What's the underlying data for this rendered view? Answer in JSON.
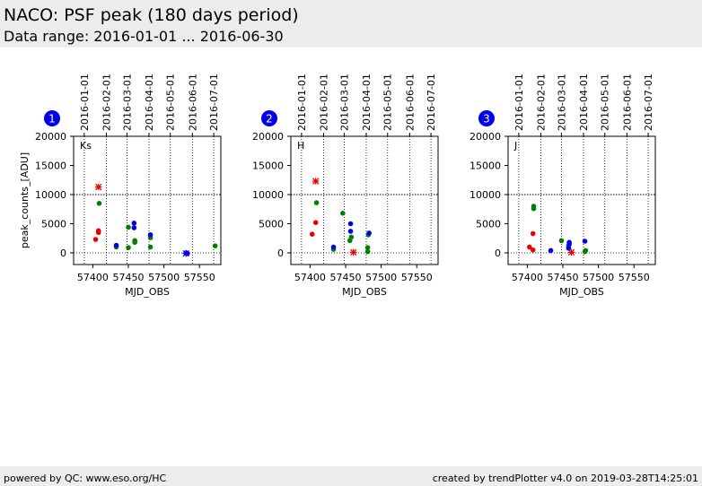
{
  "header": {
    "title": "NACO: PSF peak (180 days period)",
    "subtitle": "Data range: 2016-01-01 ... 2016-06-30"
  },
  "footer": {
    "left": "powered by QC: www.eso.org/HC",
    "right": "created by trendPlotter v4.0 on 2019-03-28T14:25:01"
  },
  "colors": {
    "red": "#ee0000",
    "green": "#008000",
    "blue": "#0000ee",
    "badge": "#0000ee",
    "header_bg": "#ececec"
  },
  "chart_data": [
    {
      "type": "scatter",
      "panel_number": "1",
      "band_label": "Ks",
      "ylabel": "peak_counts_[ADU]",
      "xlabel": "MJD_OBS",
      "xlim": [
        57373,
        57580
      ],
      "ylim": [
        -2000,
        20000
      ],
      "x_ticks": [
        57400,
        57450,
        57500,
        57550
      ],
      "y_ticks": [
        0,
        5000,
        10000,
        15000,
        20000
      ],
      "top_date_ticks": [
        {
          "mjd": 57388,
          "label": "2016-01-01"
        },
        {
          "mjd": 57419,
          "label": "2016-02-01"
        },
        {
          "mjd": 57448,
          "label": "2016-03-01"
        },
        {
          "mjd": 57479,
          "label": "2016-04-01"
        },
        {
          "mjd": 57509,
          "label": "2016-05-01"
        },
        {
          "mjd": 57540,
          "label": "2016-06-01"
        },
        {
          "mjd": 57570,
          "label": "2016-07-01"
        }
      ],
      "threshold_line": 10000,
      "grid": "dotted vertical at month boundaries",
      "series": [
        {
          "color": "red",
          "marker": "dot",
          "points": [
            [
              57404,
              2300
            ],
            [
              57408,
              3500
            ],
            [
              57408,
              3800
            ]
          ]
        },
        {
          "color": "red",
          "marker": "star",
          "points": [
            [
              57408,
              11300
            ]
          ]
        },
        {
          "color": "green",
          "marker": "dot",
          "points": [
            [
              57409,
              8500
            ],
            [
              57433,
              1000
            ],
            [
              57450,
              4400
            ],
            [
              57450,
              900
            ],
            [
              57459,
              1800
            ],
            [
              57459,
              2100
            ],
            [
              57481,
              2600
            ],
            [
              57481,
              1000
            ],
            [
              57572,
              1200
            ]
          ]
        },
        {
          "color": "blue",
          "marker": "dot",
          "points": [
            [
              57433,
              1300
            ],
            [
              57458,
              5100
            ],
            [
              57458,
              4300
            ],
            [
              57481,
              3100
            ],
            [
              57531,
              0
            ],
            [
              57533,
              -100
            ]
          ]
        },
        {
          "color": "blue",
          "marker": "star",
          "points": [
            [
              57531,
              -100
            ]
          ]
        }
      ]
    },
    {
      "type": "scatter",
      "panel_number": "2",
      "band_label": "H",
      "ylabel": "",
      "xlabel": "MJD_OBS",
      "xlim": [
        57373,
        57580
      ],
      "ylim": [
        -2000,
        20000
      ],
      "x_ticks": [
        57400,
        57450,
        57500,
        57550
      ],
      "y_ticks": [
        0,
        5000,
        10000,
        15000,
        20000
      ],
      "top_date_ticks": [
        {
          "mjd": 57388,
          "label": "2016-01-01"
        },
        {
          "mjd": 57419,
          "label": "2016-02-01"
        },
        {
          "mjd": 57448,
          "label": "2016-03-01"
        },
        {
          "mjd": 57479,
          "label": "2016-04-01"
        },
        {
          "mjd": 57509,
          "label": "2016-05-01"
        },
        {
          "mjd": 57540,
          "label": "2016-06-01"
        },
        {
          "mjd": 57570,
          "label": "2016-07-01"
        }
      ],
      "threshold_line": 10000,
      "grid": "dotted vertical at month boundaries",
      "series": [
        {
          "color": "red",
          "marker": "dot",
          "points": [
            [
              57403,
              3200
            ],
            [
              57408,
              5200
            ]
          ]
        },
        {
          "color": "red",
          "marker": "star",
          "points": [
            [
              57408,
              12300
            ],
            [
              57461,
              100
            ]
          ]
        },
        {
          "color": "green",
          "marker": "dot",
          "points": [
            [
              57409,
              8600
            ],
            [
              57433,
              600
            ],
            [
              57446,
              6800
            ],
            [
              57456,
              2100
            ],
            [
              57458,
              2700
            ],
            [
              57481,
              900
            ],
            [
              57481,
              200
            ],
            [
              57482,
              3100
            ]
          ]
        },
        {
          "color": "blue",
          "marker": "dot",
          "points": [
            [
              57433,
              1000
            ],
            [
              57457,
              5000
            ],
            [
              57457,
              3700
            ],
            [
              57483,
              3400
            ]
          ]
        }
      ]
    },
    {
      "type": "scatter",
      "panel_number": "3",
      "band_label": "J",
      "ylabel": "",
      "xlabel": "MJD_OBS",
      "xlim": [
        57373,
        57580
      ],
      "ylim": [
        -2000,
        20000
      ],
      "x_ticks": [
        57400,
        57450,
        57500,
        57550
      ],
      "y_ticks": [
        0,
        5000,
        10000,
        15000,
        20000
      ],
      "top_date_ticks": [
        {
          "mjd": 57388,
          "label": "2016-01-01"
        },
        {
          "mjd": 57419,
          "label": "2016-02-01"
        },
        {
          "mjd": 57448,
          "label": "2016-03-01"
        },
        {
          "mjd": 57479,
          "label": "2016-04-01"
        },
        {
          "mjd": 57509,
          "label": "2016-05-01"
        },
        {
          "mjd": 57540,
          "label": "2016-06-01"
        },
        {
          "mjd": 57570,
          "label": "2016-07-01"
        }
      ],
      "threshold_line": 10000,
      "grid": "dotted vertical at month boundaries",
      "series": [
        {
          "color": "red",
          "marker": "dot",
          "points": [
            [
              57403,
              1000
            ],
            [
              57408,
              3300
            ],
            [
              57408,
              500
            ]
          ]
        },
        {
          "color": "red",
          "marker": "star",
          "points": [
            [
              57462,
              100
            ]
          ]
        },
        {
          "color": "green",
          "marker": "dot",
          "points": [
            [
              57409,
              8000
            ],
            [
              57409,
              7600
            ],
            [
              57448,
              2100
            ],
            [
              57458,
              1200
            ],
            [
              57481,
              200
            ],
            [
              57482,
              400
            ]
          ]
        },
        {
          "color": "blue",
          "marker": "dot",
          "points": [
            [
              57433,
              400
            ],
            [
              57459,
              1800
            ],
            [
              57459,
              1500
            ],
            [
              57458,
              800
            ],
            [
              57481,
              2000
            ]
          ]
        }
      ]
    }
  ]
}
